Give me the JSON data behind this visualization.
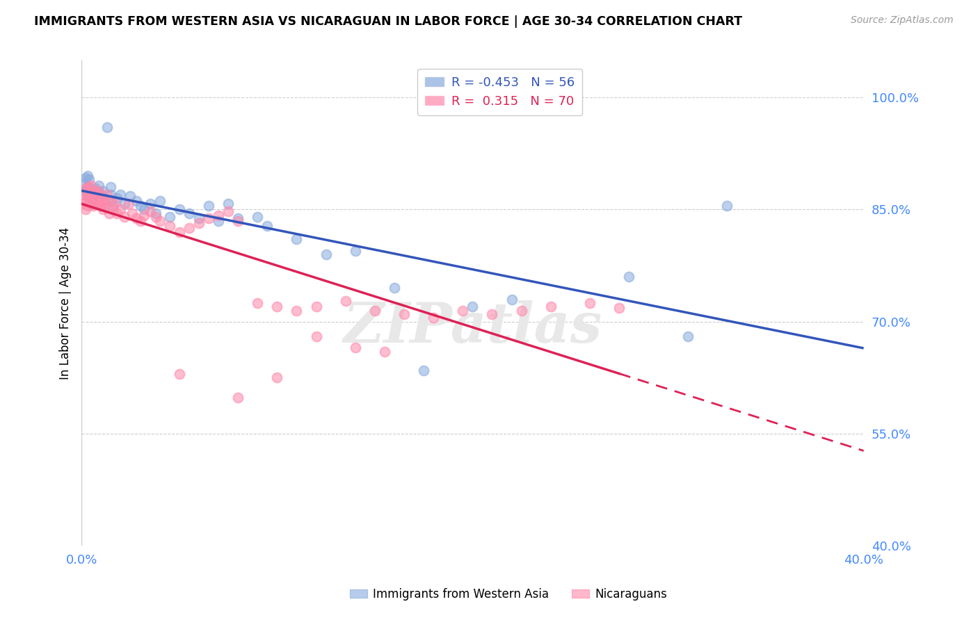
{
  "title": "IMMIGRANTS FROM WESTERN ASIA VS NICARAGUAN IN LABOR FORCE | AGE 30-34 CORRELATION CHART",
  "source": "Source: ZipAtlas.com",
  "ylabel": "In Labor Force | Age 30-34",
  "xlim": [
    0.0,
    0.4
  ],
  "ylim": [
    0.4,
    1.05
  ],
  "xticks": [
    0.0,
    0.05,
    0.1,
    0.15,
    0.2,
    0.25,
    0.3,
    0.35,
    0.4
  ],
  "xticklabels_show": [
    "0.0%",
    "40.0%"
  ],
  "ytick_positions": [
    0.4,
    0.55,
    0.7,
    0.85,
    1.0
  ],
  "yticklabels": [
    "40.0%",
    "55.0%",
    "70.0%",
    "85.0%",
    "100.0%"
  ],
  "R_blue": -0.453,
  "N_blue": 56,
  "R_pink": 0.315,
  "N_pink": 70,
  "blue_color": "#88AADD",
  "pink_color": "#FF88AA",
  "blue_line_color": "#3355BB",
  "pink_line_color": "#DD2255",
  "watermark": "ZIPatlas",
  "blue_scatter_x": [
    0.001,
    0.002,
    0.002,
    0.003,
    0.003,
    0.003,
    0.004,
    0.004,
    0.004,
    0.005,
    0.005,
    0.006,
    0.006,
    0.007,
    0.007,
    0.008,
    0.008,
    0.009,
    0.01,
    0.01,
    0.011,
    0.012,
    0.013,
    0.015,
    0.015,
    0.016,
    0.018,
    0.02,
    0.022,
    0.025,
    0.028,
    0.03,
    0.032,
    0.035,
    0.038,
    0.04,
    0.045,
    0.05,
    0.055,
    0.06,
    0.065,
    0.07,
    0.075,
    0.08,
    0.09,
    0.095,
    0.11,
    0.125,
    0.14,
    0.16,
    0.175,
    0.2,
    0.22,
    0.28,
    0.31,
    0.33
  ],
  "blue_scatter_y": [
    0.885,
    0.875,
    0.892,
    0.87,
    0.88,
    0.895,
    0.868,
    0.878,
    0.89,
    0.862,
    0.872,
    0.858,
    0.875,
    0.865,
    0.878,
    0.87,
    0.862,
    0.882,
    0.855,
    0.87,
    0.875,
    0.862,
    0.96,
    0.88,
    0.87,
    0.855,
    0.865,
    0.87,
    0.858,
    0.868,
    0.862,
    0.855,
    0.85,
    0.858,
    0.845,
    0.862,
    0.84,
    0.85,
    0.845,
    0.838,
    0.855,
    0.835,
    0.858,
    0.838,
    0.84,
    0.828,
    0.81,
    0.79,
    0.795,
    0.745,
    0.635,
    0.72,
    0.73,
    0.76,
    0.68,
    0.855
  ],
  "pink_scatter_x": [
    0.001,
    0.001,
    0.002,
    0.002,
    0.002,
    0.003,
    0.003,
    0.003,
    0.004,
    0.004,
    0.005,
    0.005,
    0.005,
    0.006,
    0.006,
    0.007,
    0.007,
    0.008,
    0.008,
    0.009,
    0.009,
    0.01,
    0.01,
    0.011,
    0.011,
    0.012,
    0.013,
    0.014,
    0.015,
    0.016,
    0.017,
    0.018,
    0.02,
    0.022,
    0.024,
    0.026,
    0.028,
    0.03,
    0.032,
    0.035,
    0.038,
    0.04,
    0.045,
    0.05,
    0.055,
    0.06,
    0.065,
    0.07,
    0.075,
    0.08,
    0.09,
    0.1,
    0.11,
    0.12,
    0.135,
    0.15,
    0.165,
    0.18,
    0.195,
    0.21,
    0.225,
    0.24,
    0.26,
    0.275,
    0.05,
    0.08,
    0.1,
    0.12,
    0.14,
    0.155
  ],
  "pink_scatter_y": [
    0.858,
    0.87,
    0.85,
    0.862,
    0.878,
    0.855,
    0.868,
    0.88,
    0.862,
    0.875,
    0.858,
    0.87,
    0.882,
    0.855,
    0.868,
    0.862,
    0.875,
    0.858,
    0.87,
    0.862,
    0.875,
    0.855,
    0.868,
    0.85,
    0.862,
    0.858,
    0.87,
    0.845,
    0.862,
    0.85,
    0.858,
    0.845,
    0.85,
    0.84,
    0.858,
    0.845,
    0.838,
    0.835,
    0.842,
    0.848,
    0.84,
    0.835,
    0.828,
    0.82,
    0.825,
    0.832,
    0.838,
    0.842,
    0.848,
    0.835,
    0.725,
    0.72,
    0.715,
    0.72,
    0.728,
    0.715,
    0.71,
    0.705,
    0.715,
    0.71,
    0.715,
    0.72,
    0.725,
    0.718,
    0.63,
    0.598,
    0.625,
    0.68,
    0.665,
    0.66
  ]
}
